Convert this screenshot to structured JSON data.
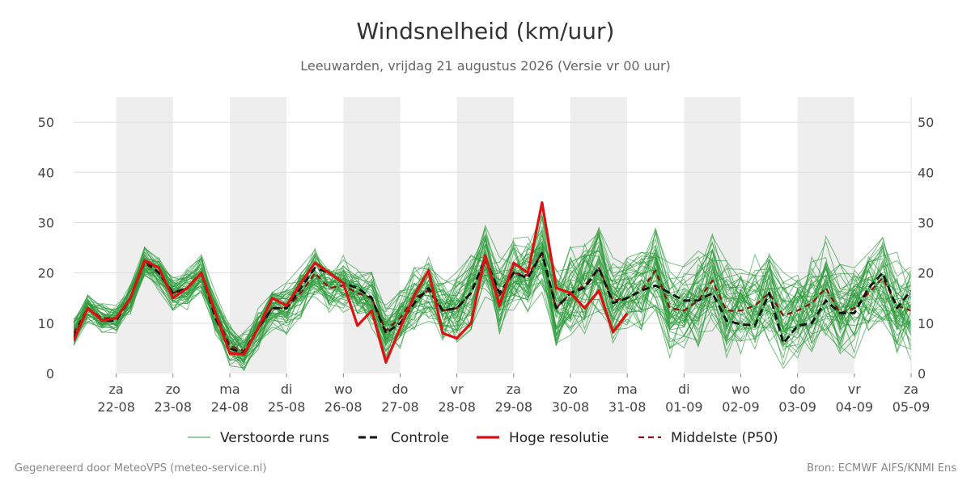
{
  "header": {
    "title": "Windsnelheid (km/uur)",
    "subtitle": "Leeuwarden, vrijdag 21 augustus 2026 (Versie vr 00 uur)"
  },
  "footer": {
    "left": "Gegenereerd door MeteoVPS (meteo-service.nl)",
    "right": "Bron: ECMWF AIFS/KNMI Ens"
  },
  "colors": {
    "ensemble": "#2e9b3c",
    "control": "#111111",
    "high_res": "#dd1111",
    "median": "#8b1010",
    "night_band": "#eeeeee",
    "grid": "#dddddd"
  },
  "chart_data": {
    "type": "line",
    "title": "Windsnelheid (km/uur)",
    "ylim": [
      0,
      55
    ],
    "yticks": [
      0,
      10,
      20,
      30,
      40,
      50
    ],
    "xlim": [
      -0.75,
      14
    ],
    "x_step_days": 0.25,
    "grid": "horizontal",
    "legend_position": "bottom",
    "x_ticks": [
      {
        "day": "za",
        "date": "22-08"
      },
      {
        "day": "zo",
        "date": "23-08"
      },
      {
        "day": "ma",
        "date": "24-08"
      },
      {
        "day": "di",
        "date": "25-08"
      },
      {
        "day": "wo",
        "date": "26-08"
      },
      {
        "day": "do",
        "date": "27-08"
      },
      {
        "day": "vr",
        "date": "28-08"
      },
      {
        "day": "za",
        "date": "29-08"
      },
      {
        "day": "zo",
        "date": "30-08"
      },
      {
        "day": "ma",
        "date": "31-08"
      },
      {
        "day": "di",
        "date": "01-09"
      },
      {
        "day": "wo",
        "date": "02-09"
      },
      {
        "day": "do",
        "date": "03-09"
      },
      {
        "day": "vr",
        "date": "04-09"
      },
      {
        "day": "za",
        "date": "05-09"
      }
    ],
    "legend": [
      {
        "key": "ensemble",
        "label": "Verstoorde runs"
      },
      {
        "key": "control",
        "label": "Controle"
      },
      {
        "key": "high_res",
        "label": "Hoge resolutie"
      },
      {
        "key": "median",
        "label": "Middelste (P50)"
      }
    ],
    "series": [
      {
        "key": "high_res",
        "values": [
          6.5,
          13,
          10.5,
          11,
          15,
          22.5,
          21,
          15,
          17,
          20,
          12,
          4,
          3.8,
          9,
          15,
          13.5,
          18,
          22,
          20,
          18,
          9.5,
          12.5,
          2.2,
          9,
          15.5,
          20.5,
          8,
          7,
          10,
          23.5,
          13.5,
          22,
          20,
          34,
          17,
          16,
          13,
          16.5,
          8.2,
          12
        ]
      },
      {
        "key": "control",
        "values": [
          7,
          13,
          10.5,
          10.5,
          15,
          22.5,
          20,
          16,
          17,
          20,
          11,
          5,
          4,
          9,
          13,
          13,
          17,
          21,
          20,
          18,
          17,
          15,
          8,
          10,
          14,
          17,
          12.5,
          13,
          16,
          23,
          16,
          20,
          19,
          24,
          13,
          16,
          17,
          21,
          14,
          15,
          16.5,
          17.5,
          16,
          14.5,
          14.5,
          16,
          10.5,
          9.8,
          9.5,
          16,
          6,
          9.5,
          10,
          14.5,
          12,
          12,
          17,
          20,
          13,
          16.5
        ]
      },
      {
        "key": "median",
        "values": [
          8,
          13,
          11,
          11,
          15,
          22,
          20,
          16,
          17,
          20,
          12,
          5.5,
          4.5,
          9,
          13,
          13,
          16,
          20,
          17,
          17.5,
          16,
          15,
          8.5,
          11,
          15,
          16.5,
          12.5,
          13,
          16,
          22.5,
          15.5,
          20,
          19.5,
          24,
          13,
          16,
          17.5,
          21,
          14.5,
          15,
          16.5,
          20.5,
          13,
          12.5,
          14.5,
          18.5,
          12.5,
          12.5,
          13.5,
          16,
          11.5,
          12.5,
          14,
          17,
          12,
          13,
          16,
          19,
          13.5,
          12.5
        ]
      }
    ],
    "ensemble": {
      "members": 50,
      "note": "Verstoorde runs",
      "mean": [
        8,
        13,
        11,
        11,
        15,
        22,
        20,
        16,
        17,
        20,
        12,
        5.5,
        4.5,
        9,
        13,
        13,
        16,
        20,
        17,
        17.5,
        16,
        15,
        8.5,
        11,
        15,
        16.5,
        12.5,
        13,
        16,
        22.5,
        15.5,
        20,
        19.5,
        24,
        13,
        16,
        17.5,
        21,
        14.5,
        15,
        16.5,
        20.5,
        13,
        12.5,
        14.5,
        18.5,
        12.5,
        12.5,
        13.5,
        16,
        11.5,
        12.5,
        14,
        17,
        12,
        13,
        16,
        19,
        13.5,
        12.5
      ],
      "spread": [
        3,
        3,
        3,
        3,
        3,
        3,
        3.5,
        3.5,
        4,
        4,
        4,
        4,
        4,
        4.5,
        4.5,
        5,
        5,
        5,
        5,
        5.5,
        5.5,
        6,
        6,
        6,
        6.5,
        6.5,
        7,
        7,
        7.5,
        8,
        8,
        8,
        8.5,
        8.5,
        9,
        9,
        9,
        9,
        9,
        9,
        9,
        9,
        9,
        9,
        9.5,
        9.5,
        9.5,
        9.5,
        10,
        10,
        10,
        10,
        10,
        10,
        10,
        10,
        10,
        10,
        10,
        10
      ]
    }
  }
}
